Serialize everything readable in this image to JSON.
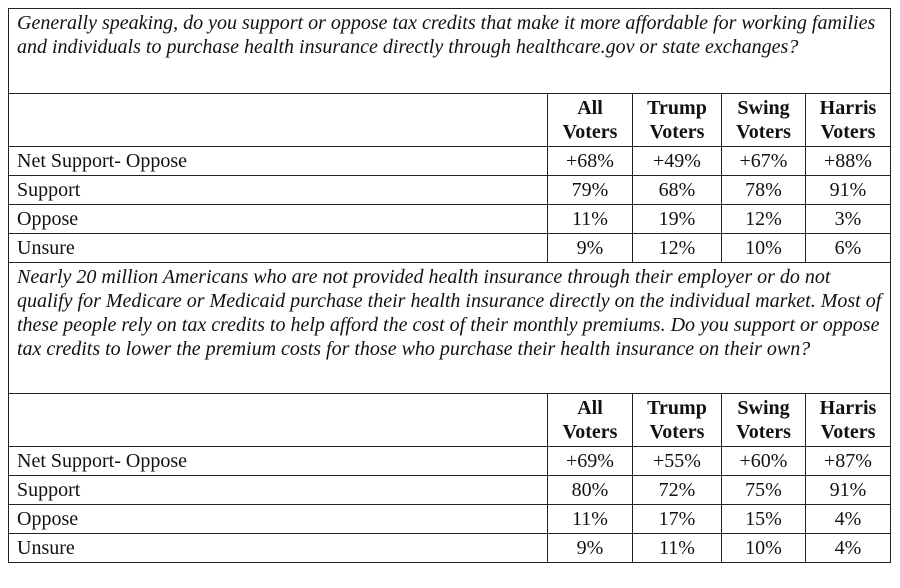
{
  "sections": [
    {
      "question": "Generally speaking, do you support or oppose tax credits that make it more affordable for working families and individuals to purchase health insurance directly through healthcare.gov or state exchanges?",
      "columns": [
        "All Voters",
        "Trump Voters",
        "Swing Voters",
        "Harris Voters"
      ],
      "rows": [
        [
          "Net Support- Oppose",
          "+68%",
          "+49%",
          "+67%",
          "+88%"
        ],
        [
          "Support",
          "79%",
          "68%",
          "78%",
          "91%"
        ],
        [
          "Oppose",
          "11%",
          "19%",
          "12%",
          "3%"
        ],
        [
          "Unsure",
          "9%",
          "12%",
          "10%",
          "6%"
        ]
      ]
    },
    {
      "question": "Nearly 20 million Americans who are not provided health insurance through their employer or do not qualify for Medicare or Medicaid purchase their health insurance directly on the individual market. Most of these people rely on tax credits to help afford the cost of their monthly premiums. Do you support or oppose tax credits to lower the premium costs for those who purchase their health insurance on their own?",
      "columns": [
        "All Voters",
        "Trump Voters",
        "Swing Voters",
        "Harris Voters"
      ],
      "rows": [
        [
          "Net Support- Oppose",
          "+69%",
          "+55%",
          "+60%",
          "+87%"
        ],
        [
          "Support",
          "80%",
          "72%",
          "75%",
          "91%"
        ],
        [
          "Oppose",
          "11%",
          "17%",
          "15%",
          "4%"
        ],
        [
          "Unsure",
          "9%",
          "11%",
          "10%",
          "4%"
        ]
      ]
    }
  ]
}
